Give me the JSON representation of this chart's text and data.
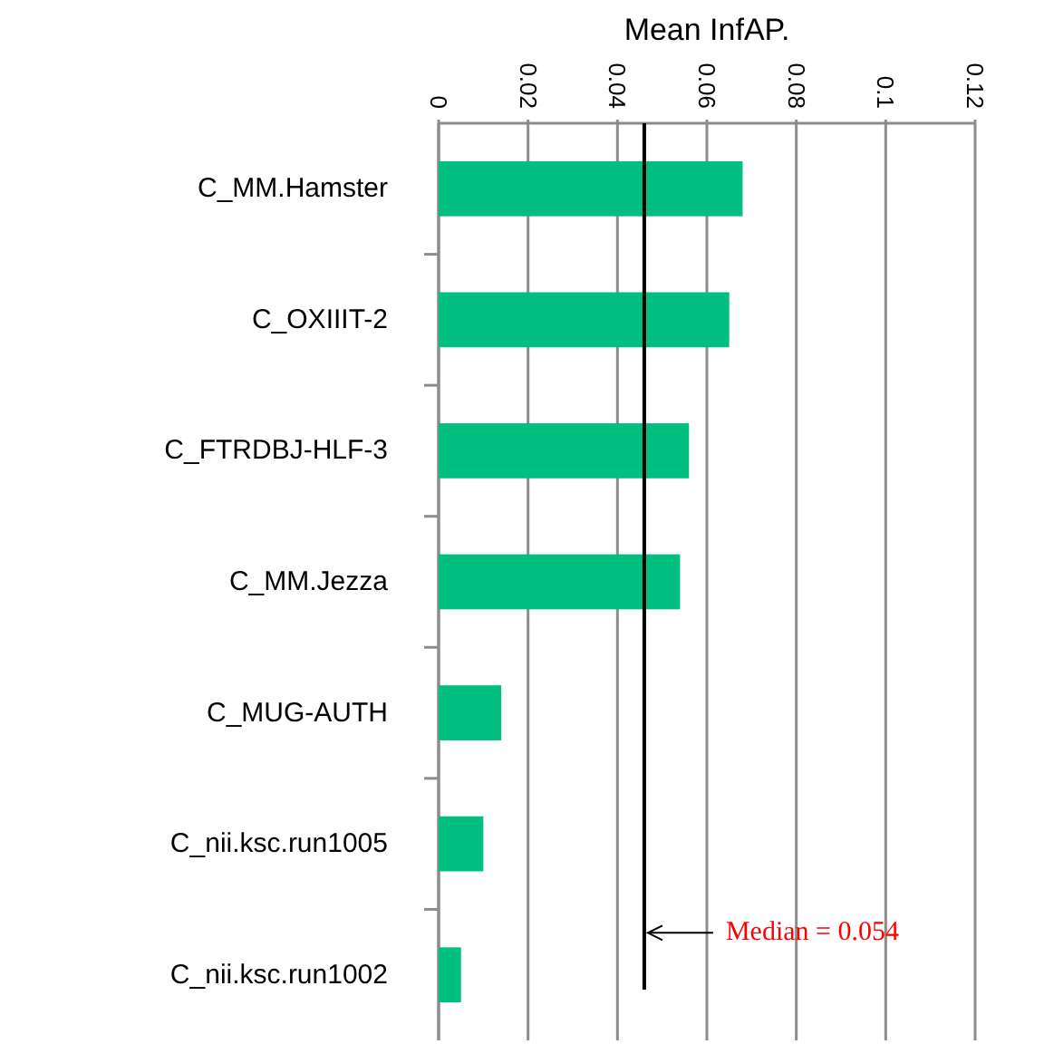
{
  "chart_data": {
    "type": "bar",
    "orientation": "horizontal",
    "xlabel": "Mean InfAP.",
    "categories": [
      "C_MM.Hamster",
      "C_OXIIIT-2",
      "C_FTRDBJ-HLF-3",
      "C_MM.Jezza",
      "C_MUG-AUTH",
      "C_nii.ksc.run1005",
      "C_nii.ksc.run1002"
    ],
    "values": [
      0.068,
      0.065,
      0.056,
      0.054,
      0.014,
      0.01,
      0.005
    ],
    "color": "#00bf80",
    "xlim": [
      0,
      0.12
    ],
    "xticks": [
      0,
      0.02,
      0.04,
      0.06,
      0.08,
      0.1,
      0.12
    ],
    "grid": "x",
    "ref_lines": [
      {
        "axis": "x",
        "value": 0.046,
        "color": "#000000"
      }
    ],
    "annotations": [
      "Median = 0.054"
    ]
  }
}
